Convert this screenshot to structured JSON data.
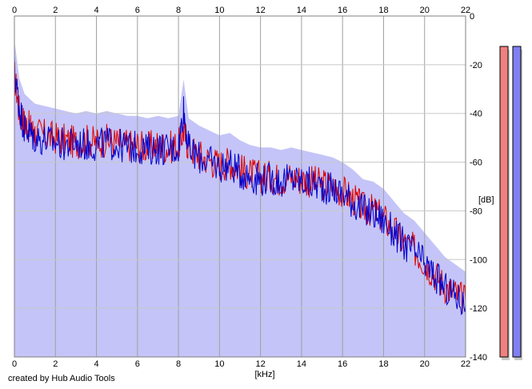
{
  "chart_data": {
    "type": "area",
    "xlabel": "[kHz]",
    "ylabel": "[dB]",
    "xlim": [
      0,
      22
    ],
    "ylim": [
      -140,
      0
    ],
    "x_ticks": [
      0,
      2,
      4,
      6,
      8,
      10,
      12,
      14,
      16,
      18,
      20,
      22
    ],
    "y_ticks": [
      0,
      -20,
      -40,
      -60,
      -80,
      -100,
      -120,
      -140
    ],
    "grid": true,
    "series": [
      {
        "color": "#e00000",
        "x": [
          0,
          0.25,
          0.5,
          0.75,
          1,
          1.5,
          2,
          2.5,
          3,
          3.5,
          4,
          4.5,
          5,
          5.5,
          6,
          6.5,
          7,
          7.5,
          8,
          8.25,
          8.5,
          9,
          9.5,
          10,
          10.5,
          11,
          11.5,
          12,
          12.5,
          13,
          13.5,
          14,
          14.5,
          15,
          15.5,
          16,
          16.5,
          17,
          17.5,
          18,
          18.5,
          19,
          19.5,
          20,
          20.5,
          21,
          21.5,
          22
        ],
        "values": [
          -24,
          -40,
          -44,
          -46,
          -48,
          -49,
          -50,
          -51,
          -52,
          -51,
          -52,
          -51,
          -52,
          -53,
          -53,
          -54,
          -53,
          -54,
          -53,
          -47,
          -54,
          -57,
          -59,
          -61,
          -60,
          -63,
          -65,
          -66,
          -66,
          -67,
          -66,
          -67,
          -68,
          -69,
          -70,
          -72,
          -75,
          -79,
          -80,
          -83,
          -88,
          -93,
          -96,
          -101,
          -106,
          -111,
          -114,
          -117
        ]
      },
      {
        "color": "#0000cc",
        "x": [
          0,
          0.25,
          0.5,
          0.75,
          1,
          1.5,
          2,
          2.5,
          3,
          3.5,
          4,
          4.5,
          5,
          5.5,
          6,
          6.5,
          7,
          7.5,
          8,
          8.25,
          8.5,
          9,
          9.5,
          10,
          10.5,
          11,
          11.5,
          12,
          12.5,
          13,
          13.5,
          14,
          14.5,
          15,
          15.5,
          16,
          16.5,
          17,
          17.5,
          18,
          18.5,
          19,
          19.5,
          20,
          20.5,
          21,
          21.5,
          22
        ],
        "values": [
          -22,
          -38,
          -46,
          -48,
          -50,
          -51,
          -52,
          -53,
          -52,
          -53,
          -53,
          -52,
          -53,
          -54,
          -54,
          -55,
          -54,
          -55,
          -54,
          -38,
          -55,
          -58,
          -60,
          -62,
          -61,
          -64,
          -66,
          -67,
          -67,
          -68,
          -67,
          -68,
          -69,
          -70,
          -71,
          -73,
          -76,
          -80,
          -81,
          -84,
          -89,
          -94,
          -97,
          -102,
          -107,
          -112,
          -115,
          -119
        ]
      }
    ],
    "fill_color": "#c4c4f8",
    "side_meters": [
      {
        "color": "#f08080"
      },
      {
        "color": "#8080f0"
      }
    ]
  },
  "footer": {
    "credit": "created by Hub Audio Tools"
  }
}
